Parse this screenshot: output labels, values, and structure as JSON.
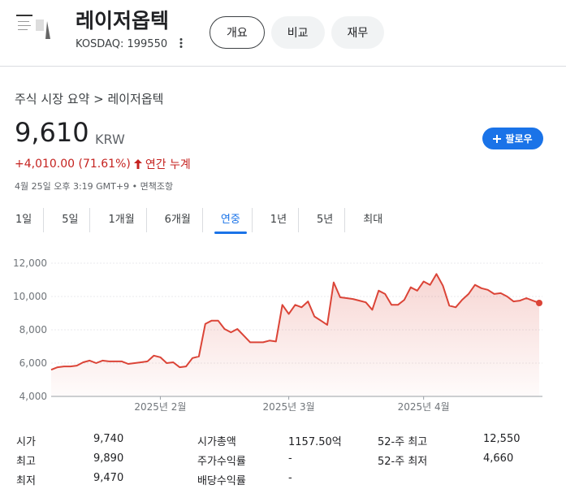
{
  "header": {
    "title": "레이저옵텍",
    "ticker": "KOSDAQ: 199550",
    "tabs": [
      "개요",
      "비교",
      "재무"
    ]
  },
  "breadcrumb": "주식 시장 요약 > 레이저옵텍",
  "price": {
    "value": "9,610",
    "currency": "KRW",
    "change": "+4,010.00 (71.61%)",
    "period": "연간 누계",
    "timestamp": "4월 25일 오후 3:19 GMT+9 •",
    "disclaimer": "면책조항",
    "follow": "팔로우"
  },
  "ranges": [
    "1일",
    "5일",
    "1개월",
    "6개월",
    "연중",
    "1년",
    "5년",
    "최대"
  ],
  "chart_data": {
    "type": "line",
    "color": "#db4437",
    "categories": [
      null,
      null,
      null,
      null,
      null,
      null,
      null,
      null,
      null,
      null,
      null,
      null,
      null,
      null,
      null,
      null,
      null,
      "2025년 2월",
      null,
      null,
      null,
      null,
      null,
      null,
      null,
      null,
      null,
      null,
      null,
      null,
      null,
      null,
      null,
      null,
      null,
      null,
      null,
      "2025년 3월",
      null,
      null,
      null,
      null,
      null,
      null,
      null,
      null,
      null,
      null,
      null,
      null,
      null,
      null,
      null,
      null,
      null,
      null,
      null,
      null,
      "2025년 4월",
      null,
      null,
      null,
      null,
      null,
      null,
      null,
      null,
      null,
      null,
      null,
      null,
      null,
      null,
      null,
      null,
      null,
      null
    ],
    "values": [
      5600,
      5750,
      5800,
      5800,
      5850,
      6050,
      6150,
      6000,
      6150,
      6100,
      6100,
      6100,
      5950,
      6000,
      6050,
      6100,
      6450,
      6350,
      6000,
      6050,
      5750,
      5800,
      6300,
      6400,
      8350,
      8550,
      8550,
      8050,
      7850,
      8050,
      7650,
      7250,
      7250,
      7250,
      7350,
      7300,
      9500,
      8950,
      9500,
      9350,
      9700,
      8800,
      8550,
      8300,
      10850,
      9950,
      9900,
      9850,
      9750,
      9650,
      9200,
      10350,
      10150,
      9500,
      9500,
      9800,
      10550,
      10350,
      10900,
      10700,
      11350,
      10650,
      9450,
      9350,
      9800,
      10150,
      10700,
      10500,
      10400,
      10150,
      10200,
      10000,
      9700,
      9750,
      9900,
      9750,
      9610
    ],
    "ylim": [
      4000,
      12000
    ],
    "yticks": [
      {
        "value": 4000,
        "label": "4,000"
      },
      {
        "value": 6000,
        "label": "6,000"
      },
      {
        "value": 8000,
        "label": "8,000"
      },
      {
        "value": 10000,
        "label": "10,000"
      },
      {
        "value": 12000,
        "label": "12,000"
      }
    ],
    "grid": true
  },
  "stats": [
    [
      [
        "시가",
        "9,740"
      ],
      [
        "최고",
        "9,890"
      ],
      [
        "최저",
        "9,470"
      ]
    ],
    [
      [
        "시가총액",
        "1157.50억"
      ],
      [
        "주가수익률",
        "-"
      ],
      [
        "배당수익률",
        "-"
      ]
    ],
    [
      [
        "52-주 최고",
        "12,550"
      ],
      [
        "52-주 최저",
        "4,660"
      ]
    ]
  ]
}
